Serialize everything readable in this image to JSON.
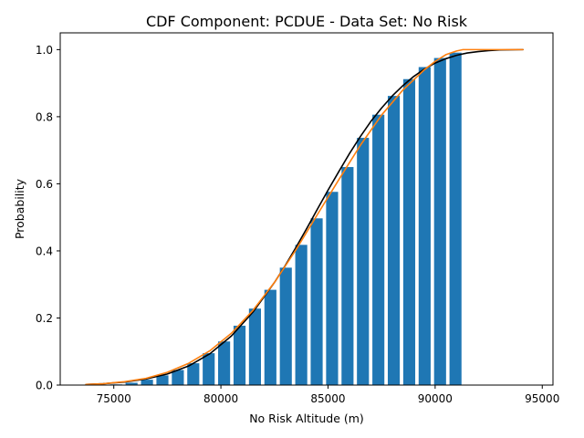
{
  "chart_data": {
    "type": "bar",
    "title": "CDF Component: PCDUE - Data Set: No Risk",
    "xlabel": "No Risk Altitude (m)",
    "ylabel": "Probability",
    "xlim": [
      72500,
      95500
    ],
    "ylim": [
      0,
      1.05
    ],
    "x_ticks": [
      75000,
      80000,
      85000,
      90000,
      95000
    ],
    "x_tick_labels": [
      "75000",
      "80000",
      "85000",
      "90000",
      "95000"
    ],
    "y_ticks": [
      0.0,
      0.2,
      0.4,
      0.6,
      0.8,
      1.0
    ],
    "y_tick_labels": [
      "0.0",
      "0.2",
      "0.4",
      "0.6",
      "0.8",
      "1.0"
    ],
    "grid": false,
    "bar_width": 560,
    "bars": {
      "color": "#1f77b4",
      "x": [
        75110,
        75830,
        76550,
        77270,
        77990,
        78710,
        79430,
        80150,
        80870,
        81590,
        82310,
        83030,
        83750,
        84470,
        85190,
        85910,
        86630,
        87350,
        88070,
        88790,
        89510,
        90230,
        90950
      ],
      "values": [
        0.002,
        0.007,
        0.016,
        0.029,
        0.045,
        0.065,
        0.095,
        0.13,
        0.177,
        0.228,
        0.284,
        0.35,
        0.418,
        0.497,
        0.576,
        0.65,
        0.737,
        0.806,
        0.862,
        0.912,
        0.948,
        0.975,
        0.991
      ]
    },
    "series": [
      {
        "color": "#000000",
        "x": [
          73700,
          74500,
          75500,
          76500,
          77500,
          78500,
          79500,
          80500,
          81500,
          82500,
          83000,
          83500,
          84000,
          84500,
          85000,
          85500,
          86000,
          86500,
          87000,
          87500,
          88000,
          88500,
          89000,
          89500,
          90000,
          90500,
          91000,
          91500,
          92000,
          92500,
          93000,
          94100
        ],
        "y": [
          0.002,
          0.004,
          0.009,
          0.018,
          0.033,
          0.057,
          0.094,
          0.147,
          0.218,
          0.306,
          0.356,
          0.41,
          0.466,
          0.524,
          0.581,
          0.636,
          0.69,
          0.74,
          0.786,
          0.826,
          0.862,
          0.893,
          0.92,
          0.942,
          0.96,
          0.973,
          0.983,
          0.99,
          0.994,
          0.997,
          0.999,
          1.0
        ]
      },
      {
        "color": "#ff7f0e",
        "x": [
          73700,
          74500,
          75500,
          76500,
          77500,
          78500,
          79500,
          80500,
          81500,
          82500,
          83500,
          84500,
          85500,
          86500,
          87500,
          88500,
          89500,
          90000,
          90500,
          91000,
          91300,
          91800,
          92500,
          93500,
          94100
        ],
        "y": [
          0.002,
          0.004,
          0.01,
          0.02,
          0.038,
          0.065,
          0.103,
          0.155,
          0.223,
          0.306,
          0.403,
          0.508,
          0.612,
          0.714,
          0.805,
          0.88,
          0.94,
          0.965,
          0.985,
          0.996,
          1.0,
          1.0,
          1.0,
          1.0,
          1.0
        ]
      }
    ]
  }
}
